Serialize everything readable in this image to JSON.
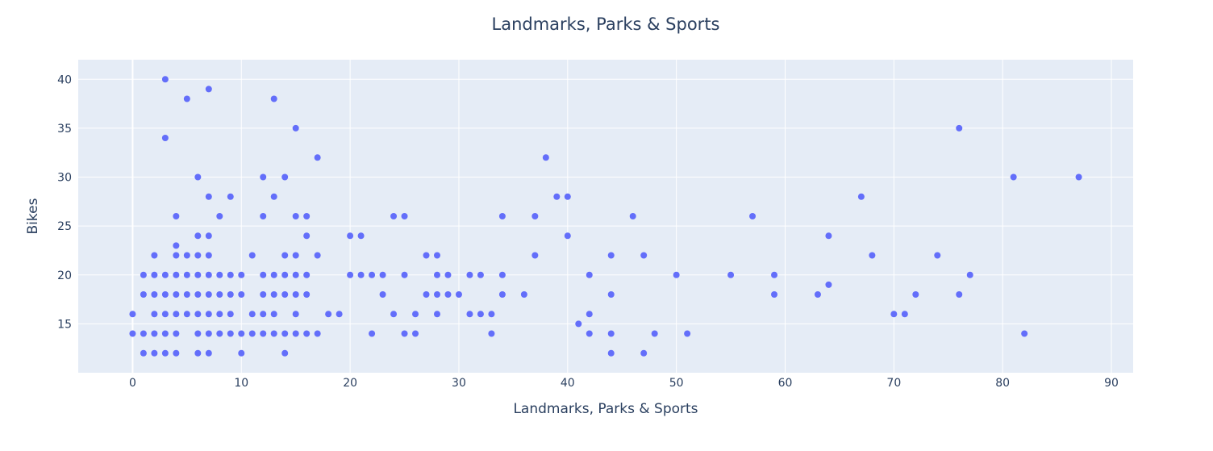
{
  "chart_data": {
    "type": "scatter",
    "title": "Landmarks, Parks & Sports",
    "xlabel": "Landmarks, Parks & Sports",
    "ylabel": "Bikes",
    "xlim": [
      -5,
      92
    ],
    "ylim": [
      10,
      42
    ],
    "xticks": [
      0,
      10,
      20,
      30,
      40,
      50,
      60,
      70,
      80,
      90
    ],
    "yticks": [
      15,
      20,
      25,
      30,
      35,
      40
    ],
    "grid": true,
    "marker_color": "#636efa",
    "background_color": "#e5ecf6",
    "points": [
      [
        0,
        16
      ],
      [
        0,
        14
      ],
      [
        1,
        20
      ],
      [
        1,
        18
      ],
      [
        1,
        14
      ],
      [
        1,
        12
      ],
      [
        2,
        22
      ],
      [
        2,
        20
      ],
      [
        2,
        18
      ],
      [
        2,
        16
      ],
      [
        2,
        14
      ],
      [
        2,
        12
      ],
      [
        3,
        40
      ],
      [
        3,
        34
      ],
      [
        3,
        20
      ],
      [
        3,
        18
      ],
      [
        3,
        16
      ],
      [
        3,
        14
      ],
      [
        3,
        12
      ],
      [
        4,
        26
      ],
      [
        4,
        23
      ],
      [
        4,
        22
      ],
      [
        4,
        20
      ],
      [
        4,
        18
      ],
      [
        4,
        16
      ],
      [
        4,
        14
      ],
      [
        4,
        12
      ],
      [
        5,
        38
      ],
      [
        5,
        22
      ],
      [
        5,
        20
      ],
      [
        5,
        18
      ],
      [
        5,
        16
      ],
      [
        6,
        30
      ],
      [
        6,
        24
      ],
      [
        6,
        22
      ],
      [
        6,
        20
      ],
      [
        6,
        18
      ],
      [
        6,
        16
      ],
      [
        6,
        14
      ],
      [
        6,
        12
      ],
      [
        7,
        39
      ],
      [
        7,
        28
      ],
      [
        7,
        24
      ],
      [
        7,
        22
      ],
      [
        7,
        20
      ],
      [
        7,
        18
      ],
      [
        7,
        16
      ],
      [
        7,
        14
      ],
      [
        7,
        12
      ],
      [
        8,
        26
      ],
      [
        8,
        20
      ],
      [
        8,
        18
      ],
      [
        8,
        16
      ],
      [
        8,
        14
      ],
      [
        9,
        28
      ],
      [
        9,
        20
      ],
      [
        9,
        18
      ],
      [
        9,
        16
      ],
      [
        9,
        14
      ],
      [
        10,
        20
      ],
      [
        10,
        18
      ],
      [
        10,
        14
      ],
      [
        10,
        12
      ],
      [
        11,
        22
      ],
      [
        11,
        16
      ],
      [
        11,
        14
      ],
      [
        12,
        30
      ],
      [
        12,
        26
      ],
      [
        12,
        20
      ],
      [
        12,
        18
      ],
      [
        12,
        16
      ],
      [
        12,
        14
      ],
      [
        13,
        38
      ],
      [
        13,
        28
      ],
      [
        13,
        20
      ],
      [
        13,
        18
      ],
      [
        13,
        16
      ],
      [
        13,
        14
      ],
      [
        14,
        30
      ],
      [
        14,
        22
      ],
      [
        14,
        20
      ],
      [
        14,
        18
      ],
      [
        14,
        14
      ],
      [
        14,
        12
      ],
      [
        15,
        35
      ],
      [
        15,
        26
      ],
      [
        15,
        22
      ],
      [
        15,
        20
      ],
      [
        15,
        18
      ],
      [
        15,
        16
      ],
      [
        15,
        14
      ],
      [
        16,
        26
      ],
      [
        16,
        24
      ],
      [
        16,
        20
      ],
      [
        16,
        18
      ],
      [
        16,
        14
      ],
      [
        17,
        32
      ],
      [
        17,
        22
      ],
      [
        17,
        14
      ],
      [
        18,
        16
      ],
      [
        19,
        16
      ],
      [
        20,
        24
      ],
      [
        20,
        20
      ],
      [
        21,
        24
      ],
      [
        21,
        20
      ],
      [
        22,
        20
      ],
      [
        22,
        14
      ],
      [
        23,
        20
      ],
      [
        23,
        18
      ],
      [
        24,
        26
      ],
      [
        24,
        16
      ],
      [
        25,
        26
      ],
      [
        25,
        20
      ],
      [
        25,
        14
      ],
      [
        26,
        16
      ],
      [
        26,
        14
      ],
      [
        27,
        22
      ],
      [
        27,
        18
      ],
      [
        28,
        22
      ],
      [
        28,
        20
      ],
      [
        28,
        18
      ],
      [
        28,
        16
      ],
      [
        29,
        20
      ],
      [
        29,
        18
      ],
      [
        30,
        18
      ],
      [
        31,
        20
      ],
      [
        31,
        16
      ],
      [
        32,
        20
      ],
      [
        32,
        16
      ],
      [
        33,
        16
      ],
      [
        33,
        14
      ],
      [
        34,
        26
      ],
      [
        34,
        20
      ],
      [
        34,
        18
      ],
      [
        36,
        18
      ],
      [
        37,
        26
      ],
      [
        37,
        22
      ],
      [
        38,
        32
      ],
      [
        39,
        28
      ],
      [
        40,
        28
      ],
      [
        40,
        24
      ],
      [
        41,
        15
      ],
      [
        42,
        20
      ],
      [
        42,
        16
      ],
      [
        42,
        14
      ],
      [
        44,
        22
      ],
      [
        44,
        18
      ],
      [
        44,
        14
      ],
      [
        44,
        12
      ],
      [
        46,
        26
      ],
      [
        47,
        22
      ],
      [
        47,
        12
      ],
      [
        48,
        14
      ],
      [
        50,
        20
      ],
      [
        51,
        14
      ],
      [
        55,
        20
      ],
      [
        57,
        26
      ],
      [
        59,
        20
      ],
      [
        59,
        18
      ],
      [
        63,
        18
      ],
      [
        64,
        24
      ],
      [
        64,
        19
      ],
      [
        67,
        28
      ],
      [
        68,
        22
      ],
      [
        70,
        16
      ],
      [
        71,
        16
      ],
      [
        72,
        18
      ],
      [
        74,
        22
      ],
      [
        76,
        35
      ],
      [
        76,
        18
      ],
      [
        77,
        20
      ],
      [
        81,
        30
      ],
      [
        82,
        14
      ],
      [
        87,
        30
      ]
    ]
  }
}
